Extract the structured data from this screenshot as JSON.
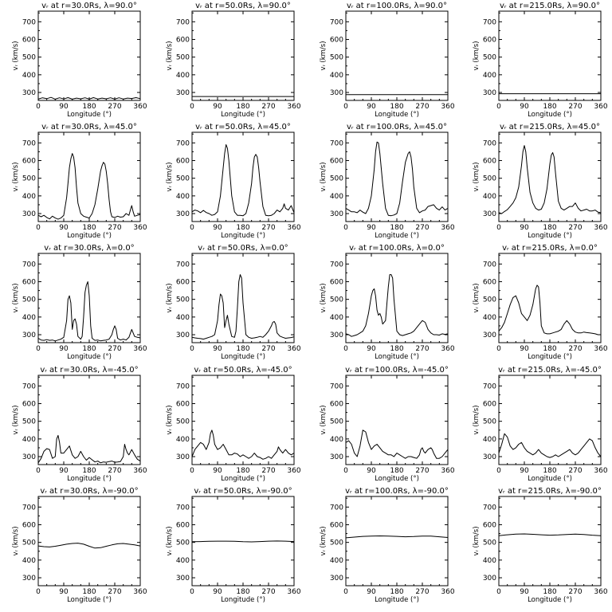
{
  "layout": {
    "rows": 5,
    "cols": 4
  },
  "axes_common": {
    "xlabel": "Longitude (°)",
    "ylabel": "vᵣ (km/s)",
    "xlim": [
      0,
      360
    ],
    "ylim": [
      255,
      760
    ],
    "xticks": [
      0,
      90,
      180,
      270,
      360
    ],
    "yticks": [
      300,
      400,
      500,
      600,
      700
    ]
  },
  "chart_data": [
    {
      "type": "line",
      "title": "vᵣ at r=30.0Rs, λ=90.0°",
      "x": [
        0,
        15,
        30,
        45,
        60,
        75,
        90,
        105,
        120,
        135,
        150,
        165,
        180,
        195,
        210,
        225,
        240,
        255,
        270,
        285,
        300,
        315,
        330,
        345,
        360
      ],
      "y": [
        262,
        270,
        265,
        272,
        262,
        270,
        263,
        271,
        262,
        268,
        264,
        270,
        262,
        271,
        263,
        268,
        264,
        270,
        262,
        270,
        263,
        268,
        266,
        271,
        265
      ]
    },
    {
      "type": "line",
      "title": "vᵣ at r=50.0Rs, λ=90.0°",
      "x": [
        0,
        360
      ],
      "y": [
        277,
        277
      ]
    },
    {
      "type": "line",
      "title": "vᵣ at r=100.0Rs, λ=90.0°",
      "x": [
        0,
        360
      ],
      "y": [
        288,
        288
      ]
    },
    {
      "type": "line",
      "title": "vᵣ at r=215.0Rs, λ=90.0°",
      "x": [
        0,
        360
      ],
      "y": [
        293,
        293
      ]
    },
    {
      "type": "line",
      "title": "vᵣ at r=30.0Rs, λ=45.0°",
      "x": [
        0,
        10,
        20,
        30,
        40,
        50,
        60,
        70,
        80,
        90,
        100,
        105,
        110,
        115,
        120,
        125,
        130,
        135,
        140,
        150,
        160,
        170,
        180,
        190,
        200,
        210,
        220,
        225,
        230,
        235,
        240,
        245,
        250,
        255,
        260,
        270,
        280,
        290,
        300,
        310,
        320,
        325,
        330,
        335,
        340,
        350,
        360
      ],
      "y": [
        290,
        282,
        290,
        278,
        270,
        285,
        275,
        268,
        275,
        290,
        390,
        470,
        560,
        610,
        640,
        620,
        560,
        450,
        360,
        300,
        285,
        280,
        275,
        300,
        350,
        440,
        540,
        570,
        590,
        580,
        540,
        470,
        380,
        310,
        282,
        278,
        285,
        280,
        282,
        300,
        290,
        320,
        345,
        310,
        285,
        290,
        295
      ]
    },
    {
      "type": "line",
      "title": "vᵣ at r=50.0Rs, λ=45.0°",
      "x": [
        0,
        10,
        20,
        30,
        40,
        50,
        60,
        70,
        80,
        90,
        100,
        110,
        115,
        120,
        125,
        130,
        135,
        140,
        150,
        160,
        170,
        180,
        190,
        200,
        210,
        215,
        220,
        225,
        230,
        235,
        240,
        250,
        260,
        270,
        280,
        290,
        300,
        310,
        320,
        325,
        330,
        340,
        350,
        360
      ],
      "y": [
        310,
        320,
        315,
        305,
        318,
        306,
        300,
        290,
        295,
        310,
        400,
        560,
        640,
        690,
        670,
        600,
        500,
        400,
        310,
        290,
        290,
        288,
        300,
        360,
        470,
        560,
        620,
        635,
        620,
        560,
        480,
        340,
        290,
        288,
        290,
        300,
        320,
        310,
        330,
        355,
        330,
        320,
        345,
        305
      ]
    },
    {
      "type": "line",
      "title": "vᵣ at r=100.0Rs, λ=45.0°",
      "x": [
        0,
        10,
        20,
        30,
        40,
        50,
        60,
        70,
        80,
        90,
        100,
        105,
        110,
        115,
        120,
        130,
        140,
        150,
        160,
        170,
        180,
        190,
        200,
        210,
        220,
        225,
        230,
        235,
        240,
        250,
        260,
        270,
        280,
        290,
        300,
        310,
        320,
        330,
        340,
        350,
        360
      ],
      "y": [
        330,
        320,
        310,
        310,
        305,
        320,
        308,
        300,
        330,
        400,
        550,
        650,
        705,
        700,
        640,
        470,
        330,
        290,
        288,
        292,
        300,
        360,
        480,
        590,
        640,
        650,
        620,
        550,
        450,
        330,
        305,
        315,
        320,
        340,
        345,
        350,
        330,
        320,
        338,
        320,
        330
      ]
    },
    {
      "type": "line",
      "title": "vᵣ at r=215.0Rs, λ=45.0°",
      "x": [
        0,
        10,
        20,
        30,
        40,
        50,
        60,
        70,
        80,
        85,
        90,
        95,
        100,
        110,
        120,
        130,
        140,
        150,
        160,
        170,
        180,
        185,
        190,
        195,
        200,
        210,
        220,
        230,
        240,
        250,
        260,
        270,
        280,
        290,
        300,
        310,
        320,
        330,
        340,
        350,
        360
      ],
      "y": [
        305,
        300,
        312,
        322,
        340,
        360,
        390,
        450,
        570,
        650,
        685,
        650,
        560,
        420,
        360,
        330,
        320,
        325,
        360,
        440,
        580,
        630,
        645,
        620,
        530,
        370,
        330,
        320,
        330,
        340,
        340,
        360,
        330,
        315,
        320,
        325,
        315,
        315,
        320,
        308,
        305
      ]
    },
    {
      "type": "line",
      "title": "vᵣ at r=30.0Rs, λ=0.0°",
      "x": [
        0,
        10,
        20,
        30,
        40,
        50,
        60,
        70,
        80,
        90,
        100,
        105,
        110,
        115,
        120,
        125,
        130,
        135,
        140,
        150,
        155,
        160,
        165,
        170,
        175,
        180,
        185,
        190,
        200,
        210,
        220,
        230,
        240,
        250,
        260,
        265,
        270,
        275,
        280,
        290,
        300,
        310,
        320,
        330,
        340,
        350,
        360
      ],
      "y": [
        280,
        270,
        268,
        272,
        268,
        270,
        265,
        270,
        275,
        285,
        380,
        500,
        520,
        480,
        330,
        380,
        390,
        360,
        290,
        275,
        290,
        400,
        540,
        580,
        600,
        520,
        350,
        280,
        268,
        270,
        265,
        268,
        270,
        275,
        300,
        330,
        350,
        330,
        280,
        270,
        275,
        270,
        285,
        330,
        290,
        285,
        282
      ]
    },
    {
      "type": "line",
      "title": "vᵣ at r=50.0Rs, λ=0.0°",
      "x": [
        0,
        10,
        20,
        30,
        40,
        50,
        60,
        70,
        80,
        90,
        95,
        100,
        105,
        110,
        115,
        120,
        125,
        130,
        140,
        150,
        155,
        160,
        165,
        170,
        175,
        180,
        190,
        200,
        210,
        220,
        230,
        240,
        250,
        260,
        270,
        280,
        285,
        290,
        295,
        300,
        310,
        320,
        330,
        340,
        350,
        360
      ],
      "y": [
        285,
        282,
        280,
        278,
        275,
        280,
        285,
        290,
        300,
        380,
        470,
        530,
        520,
        480,
        340,
        380,
        410,
        360,
        290,
        285,
        320,
        450,
        600,
        640,
        620,
        480,
        300,
        285,
        280,
        282,
        285,
        290,
        285,
        300,
        320,
        350,
        370,
        375,
        360,
        310,
        292,
        285,
        280,
        282,
        284,
        288
      ]
    },
    {
      "type": "line",
      "title": "vᵣ at r=100.0Rs, λ=0.0°",
      "x": [
        0,
        10,
        20,
        30,
        40,
        50,
        60,
        70,
        80,
        90,
        95,
        100,
        105,
        110,
        115,
        120,
        125,
        130,
        140,
        145,
        150,
        155,
        160,
        165,
        170,
        180,
        190,
        200,
        210,
        220,
        230,
        240,
        250,
        260,
        270,
        280,
        290,
        300,
        310,
        320,
        330,
        340,
        350,
        360
      ],
      "y": [
        305,
        300,
        290,
        295,
        300,
        310,
        320,
        350,
        420,
        520,
        550,
        560,
        520,
        440,
        410,
        420,
        400,
        360,
        380,
        480,
        570,
        640,
        640,
        620,
        500,
        320,
        300,
        295,
        300,
        305,
        310,
        320,
        340,
        360,
        380,
        370,
        330,
        310,
        300,
        300,
        298,
        305,
        302,
        305
      ]
    },
    {
      "type": "line",
      "title": "vᵣ at r=215.0Rs, λ=0.0°",
      "x": [
        0,
        10,
        20,
        30,
        40,
        50,
        60,
        70,
        80,
        90,
        100,
        110,
        120,
        130,
        135,
        140,
        145,
        150,
        160,
        170,
        180,
        190,
        200,
        210,
        220,
        230,
        240,
        250,
        260,
        270,
        280,
        290,
        300,
        310,
        320,
        330,
        340,
        350,
        360
      ],
      "y": [
        320,
        340,
        370,
        420,
        470,
        510,
        520,
        480,
        420,
        400,
        380,
        410,
        470,
        560,
        580,
        570,
        480,
        350,
        310,
        305,
        305,
        310,
        315,
        320,
        330,
        360,
        380,
        360,
        330,
        315,
        310,
        310,
        315,
        312,
        310,
        308,
        305,
        300,
        300
      ]
    },
    {
      "type": "line",
      "title": "vᵣ at r=30.0Rs, λ=-45.0°",
      "x": [
        0,
        10,
        20,
        30,
        40,
        50,
        60,
        65,
        70,
        75,
        80,
        90,
        100,
        110,
        120,
        130,
        140,
        150,
        160,
        170,
        180,
        190,
        200,
        210,
        220,
        230,
        240,
        250,
        260,
        270,
        280,
        290,
        300,
        305,
        310,
        315,
        320,
        330,
        340,
        350,
        360
      ],
      "y": [
        265,
        290,
        330,
        345,
        340,
        290,
        300,
        400,
        420,
        380,
        320,
        320,
        340,
        360,
        310,
        290,
        300,
        330,
        300,
        280,
        295,
        282,
        270,
        275,
        265,
        270,
        268,
        272,
        275,
        268,
        270,
        272,
        300,
        370,
        340,
        320,
        310,
        340,
        310,
        285,
        275
      ]
    },
    {
      "type": "line",
      "title": "vᵣ at r=50.0Rs, λ=-45.0°",
      "x": [
        0,
        10,
        20,
        30,
        40,
        50,
        60,
        65,
        70,
        75,
        80,
        90,
        100,
        110,
        120,
        130,
        140,
        150,
        160,
        170,
        180,
        190,
        200,
        210,
        220,
        230,
        240,
        250,
        260,
        270,
        280,
        290,
        300,
        305,
        310,
        315,
        320,
        330,
        340,
        350,
        360
      ],
      "y": [
        300,
        340,
        360,
        380,
        370,
        340,
        380,
        430,
        450,
        420,
        370,
        340,
        350,
        370,
        340,
        310,
        310,
        320,
        315,
        300,
        310,
        300,
        290,
        300,
        320,
        300,
        295,
        285,
        290,
        300,
        290,
        310,
        330,
        355,
        340,
        330,
        320,
        340,
        320,
        310,
        320
      ]
    },
    {
      "type": "line",
      "title": "vᵣ at r=100.0Rs, λ=-45.0°",
      "x": [
        0,
        10,
        20,
        30,
        40,
        50,
        60,
        70,
        80,
        90,
        100,
        110,
        120,
        130,
        140,
        150,
        160,
        170,
        180,
        190,
        200,
        210,
        220,
        230,
        240,
        250,
        260,
        265,
        270,
        275,
        280,
        290,
        300,
        305,
        310,
        320,
        330,
        340,
        350,
        360
      ],
      "y": [
        380,
        390,
        370,
        320,
        300,
        360,
        450,
        440,
        380,
        340,
        360,
        370,
        350,
        330,
        320,
        310,
        310,
        300,
        320,
        310,
        300,
        290,
        300,
        300,
        295,
        290,
        310,
        340,
        350,
        330,
        320,
        340,
        350,
        340,
        320,
        290,
        290,
        300,
        320,
        340
      ]
    },
    {
      "type": "line",
      "title": "vᵣ at r=215.0Rs, λ=-45.0°",
      "x": [
        0,
        10,
        20,
        30,
        40,
        50,
        60,
        70,
        80,
        90,
        100,
        110,
        120,
        130,
        140,
        150,
        160,
        170,
        180,
        190,
        200,
        210,
        220,
        230,
        240,
        250,
        260,
        270,
        280,
        290,
        300,
        310,
        320,
        330,
        340,
        350,
        360
      ],
      "y": [
        320,
        370,
        430,
        410,
        360,
        340,
        350,
        370,
        380,
        350,
        330,
        320,
        310,
        320,
        340,
        320,
        310,
        300,
        295,
        300,
        310,
        300,
        310,
        320,
        330,
        340,
        320,
        310,
        320,
        340,
        360,
        380,
        400,
        390,
        350,
        320,
        300
      ]
    },
    {
      "type": "line",
      "title": "vᵣ at r=30.0Rs, λ=-90.0°",
      "x": [
        0,
        20,
        40,
        60,
        80,
        100,
        120,
        140,
        160,
        180,
        200,
        220,
        240,
        260,
        280,
        300,
        320,
        340,
        360
      ],
      "y": [
        480,
        476,
        474,
        478,
        484,
        490,
        494,
        496,
        490,
        478,
        468,
        470,
        478,
        486,
        492,
        494,
        490,
        486,
        480
      ]
    },
    {
      "type": "line",
      "title": "vᵣ at r=50.0Rs, λ=-90.0°",
      "x": [
        0,
        30,
        60,
        90,
        120,
        150,
        180,
        210,
        240,
        270,
        300,
        330,
        360
      ],
      "y": [
        504,
        505,
        506,
        507,
        507,
        506,
        504,
        503,
        505,
        507,
        508,
        507,
        505
      ]
    },
    {
      "type": "line",
      "title": "vᵣ at r=100.0Rs, λ=-90.0°",
      "x": [
        0,
        30,
        60,
        90,
        120,
        150,
        180,
        210,
        240,
        270,
        300,
        330,
        360
      ],
      "y": [
        526,
        530,
        534,
        536,
        537,
        536,
        534,
        532,
        533,
        536,
        536,
        532,
        528
      ]
    },
    {
      "type": "line",
      "title": "vᵣ at r=215.0Rs, λ=-90.0°",
      "x": [
        0,
        30,
        60,
        90,
        120,
        150,
        180,
        210,
        240,
        270,
        300,
        330,
        360
      ],
      "y": [
        538,
        543,
        547,
        548,
        546,
        543,
        541,
        542,
        545,
        547,
        545,
        541,
        538
      ]
    }
  ]
}
